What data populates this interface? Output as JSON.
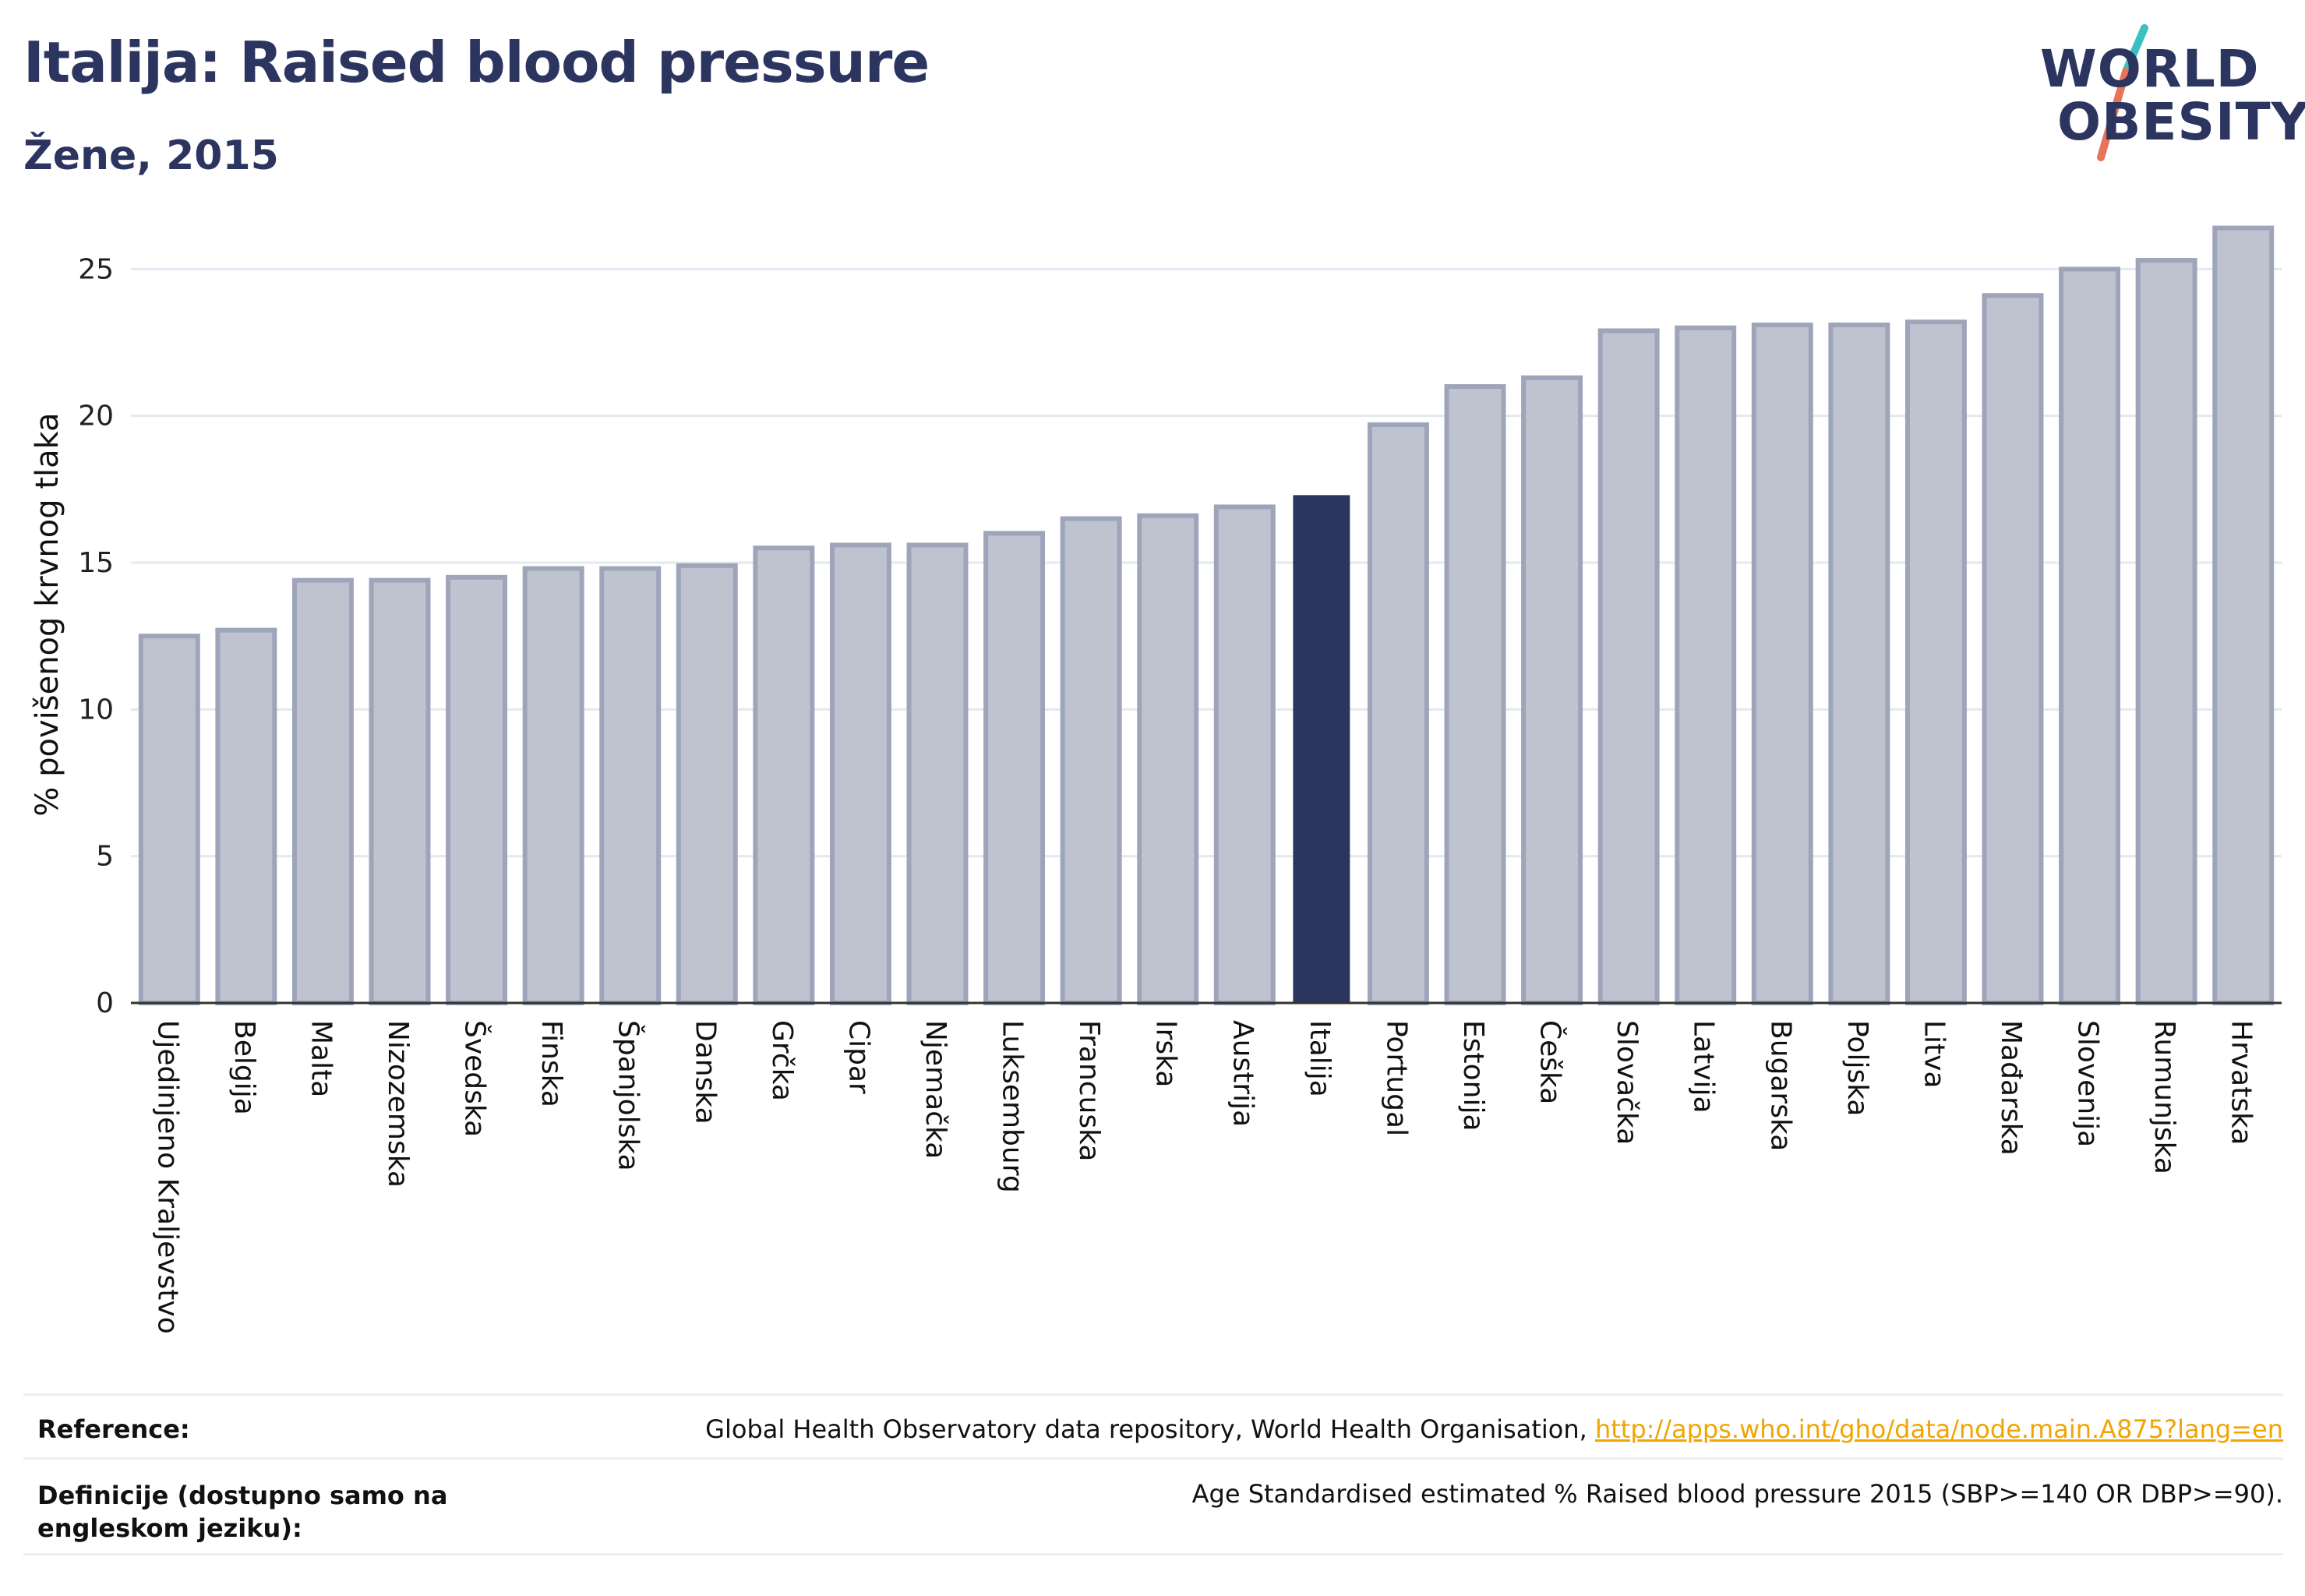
{
  "header": {
    "title": "Italija: Raised blood pressure",
    "subtitle": "Žene, 2015"
  },
  "logo": {
    "line1": "WORLD",
    "line2": "OBESITY",
    "colors": {
      "text": "#2b3560",
      "slash_top": "#3bbfbf",
      "slash_bottom": "#e8735a"
    }
  },
  "chart_data": {
    "type": "bar",
    "ylabel": "% povišenog krvnog tlaka",
    "ylim": [
      0,
      27
    ],
    "yticks": [
      0,
      5,
      10,
      15,
      20,
      25
    ],
    "grid": true,
    "highlight": "Italija",
    "colors": {
      "bar": "#bfc3d0",
      "bar_edge": "#9ea4b9",
      "highlight": "#2b3560"
    },
    "categories": [
      "Ujedinjeno Kraljevstvo",
      "Belgija",
      "Malta",
      "Nizozemska",
      "Švedska",
      "Finska",
      "Španjolska",
      "Danska",
      "Grčka",
      "Cipar",
      "Njemačka",
      "Luksemburg",
      "Francuska",
      "Irska",
      "Austrija",
      "Italija",
      "Portugal",
      "Estonija",
      "Češka",
      "Slovačka",
      "Latvija",
      "Bugarska",
      "Poljska",
      "Litva",
      "Mađarska",
      "Slovenija",
      "Rumunjska",
      "Hrvatska"
    ],
    "values": [
      12.5,
      12.7,
      14.4,
      14.4,
      14.5,
      14.8,
      14.8,
      14.9,
      15.5,
      15.6,
      15.6,
      16.0,
      16.5,
      16.6,
      16.9,
      17.3,
      19.7,
      21.0,
      21.3,
      22.9,
      23.0,
      23.1,
      23.1,
      23.2,
      24.1,
      25.0,
      25.3,
      26.4
    ]
  },
  "footer": {
    "reference_label": "Reference:",
    "reference_text": "Global Health Observatory data repository, World Health Organisation, ",
    "reference_link": "http://apps.who.int/gho/data/node.main.A875?lang=en",
    "definition_label": "Definicije (dostupno samo na engleskom jeziku):",
    "definition_text": "Age Standardised estimated % Raised blood pressure 2015 (SBP>=140 OR DBP>=90)."
  }
}
